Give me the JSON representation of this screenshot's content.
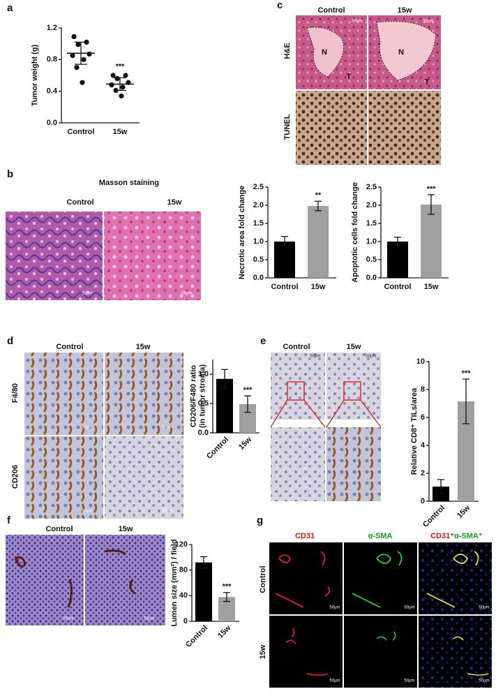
{
  "chart_data": [
    {
      "type": "dot",
      "ylabel": [
        "Tumor weight (g)"
      ],
      "categories": [
        "Control",
        "15w"
      ],
      "points": [
        [
          1.09,
          1.02,
          0.99,
          0.87,
          0.85,
          0.8,
          0.7,
          0.51
        ],
        [
          0.6,
          0.6,
          0.56,
          0.51,
          0.48,
          0.45,
          0.41,
          0.34
        ]
      ],
      "means": [
        0.88,
        0.49
      ],
      "errors": [
        0.14,
        0.08
      ],
      "color": "#111111",
      "ylim": [
        0,
        1.2
      ],
      "yticks": [
        {
          "value": 0,
          "label": "0.0"
        },
        0.4,
        0.8,
        1.2
      ],
      "annotation": "***"
    },
    {
      "type": "bar",
      "ylabel": [
        "Necrotic area fold change"
      ],
      "categories": [
        "Control",
        "15w"
      ],
      "values": [
        1.0,
        1.98
      ],
      "errors": [
        0.14,
        0.13
      ],
      "colors": [
        "#000000",
        "#a0a0a0"
      ],
      "ylim": [
        0,
        2.5
      ],
      "yticks": [
        {
          "value": 0,
          "label": "0.0"
        },
        0.5,
        {
          "value": 1,
          "label": "1.0"
        },
        1.5,
        {
          "value": 2,
          "label": "2.0"
        },
        2.5
      ],
      "annotation": "**"
    },
    {
      "type": "bar",
      "ylabel": [
        "Apoptotic cells fold change"
      ],
      "categories": [
        "Control",
        "15w"
      ],
      "values": [
        1.0,
        2.02
      ],
      "errors": [
        0.12,
        0.27
      ],
      "colors": [
        "#000000",
        "#a0a0a0"
      ],
      "ylim": [
        0,
        2.5
      ],
      "yticks": [
        {
          "value": 0,
          "label": "0.0"
        },
        0.5,
        {
          "value": 1,
          "label": "1.0"
        },
        1.5,
        {
          "value": 2,
          "label": "2.0"
        },
        2.5
      ],
      "annotation": "***"
    },
    {
      "type": "bar",
      "ylabel": [
        "CD206/F480 ratio",
        "(in tumor stroma)"
      ],
      "categories": [
        "Control",
        "15w"
      ],
      "values": [
        0.92,
        0.49
      ],
      "errors": [
        0.16,
        0.14
      ],
      "colors": [
        "#000000",
        "#a0a0a0"
      ],
      "ylim": [
        0,
        1.25
      ],
      "yticks": [
        {
          "value": 0,
          "label": "0.0"
        },
        0.5,
        {
          "value": 1,
          "label": "1.0"
        }
      ],
      "annotation": "***"
    },
    {
      "type": "bar",
      "ylabel": [
        "Relative CD8⁺ TILs/area"
      ],
      "categories": [
        "Control",
        "15w"
      ],
      "values": [
        1.05,
        7.15
      ],
      "errors": [
        0.5,
        1.6
      ],
      "colors": [
        "#000000",
        "#a0a0a0"
      ],
      "ylim": [
        0,
        10
      ],
      "yticks": [
        0,
        2,
        4,
        6,
        8,
        10
      ],
      "annotation": "***"
    },
    {
      "type": "bar",
      "ylabel": [
        "Lumen size (mm²) / field"
      ],
      "categories": [
        "Control",
        "15w"
      ],
      "values": [
        92,
        38
      ],
      "errors": [
        9,
        7
      ],
      "colors": [
        "#000000",
        "#a0a0a0"
      ],
      "ylim": [
        0,
        120
      ],
      "yticks": [
        0,
        40,
        80,
        120
      ],
      "annotation": "***"
    }
  ],
  "figure": {
    "panels": [
      "a",
      "b",
      "c",
      "d",
      "e",
      "f",
      "g"
    ],
    "b_title": "Masson staining",
    "groups": [
      "Control",
      "15w"
    ],
    "c_rows": [
      "H&E",
      "TUNEL"
    ],
    "c_marks": [
      "N",
      "T"
    ],
    "d_rows": [
      "F4/80",
      "CD206"
    ],
    "g_cols": [
      "CD31",
      "α-SMA",
      "CD31⁺",
      "α-SMA⁺"
    ],
    "scale": "50μm"
  }
}
